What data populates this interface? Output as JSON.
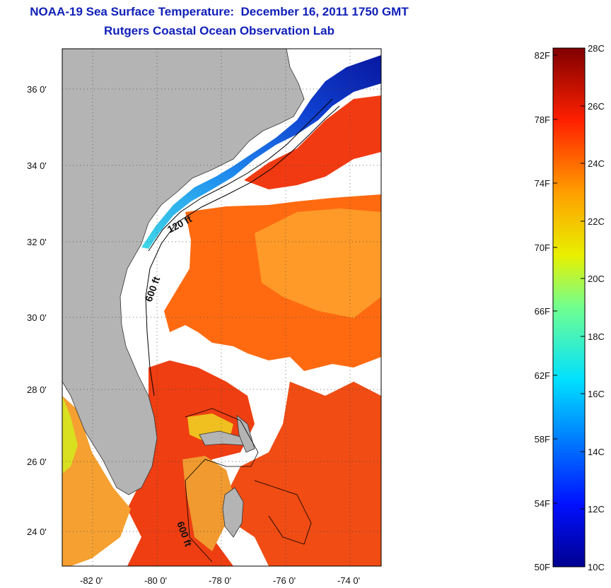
{
  "header": {
    "title": "NOAA-19 Sea Surface Temperature:  December 16, 2011 1750 GMT",
    "subtitle": "Rutgers Coastal Ocean Observation Lab"
  },
  "map": {
    "lat_labels": [
      "36 0'",
      "34 0'",
      "32 0'",
      "30 0'",
      "28 0'",
      "26 0'",
      "24 0'"
    ],
    "lon_labels": [
      "-82 0'",
      "-80 0'",
      "-78 0'",
      "-76 0'",
      "-74 0'"
    ],
    "contour_labels": [
      "120 ft",
      "600 ft",
      "600 ft"
    ],
    "colors": {
      "land": "#b4b4b4",
      "cloud": "#ffffff",
      "cold": "#1030c8",
      "warm": "#e83a10"
    }
  },
  "colorbar": {
    "fahrenheit": [
      "82F",
      "78F",
      "74F",
      "70F",
      "66F",
      "62F",
      "58F",
      "54F",
      "50F"
    ],
    "celsius": [
      "28C",
      "26C",
      "24C",
      "22C",
      "20C",
      "18C",
      "16C",
      "14C",
      "12C",
      "10C"
    ],
    "range_c": [
      10,
      28
    ],
    "range_f": [
      50,
      82.4
    ]
  }
}
